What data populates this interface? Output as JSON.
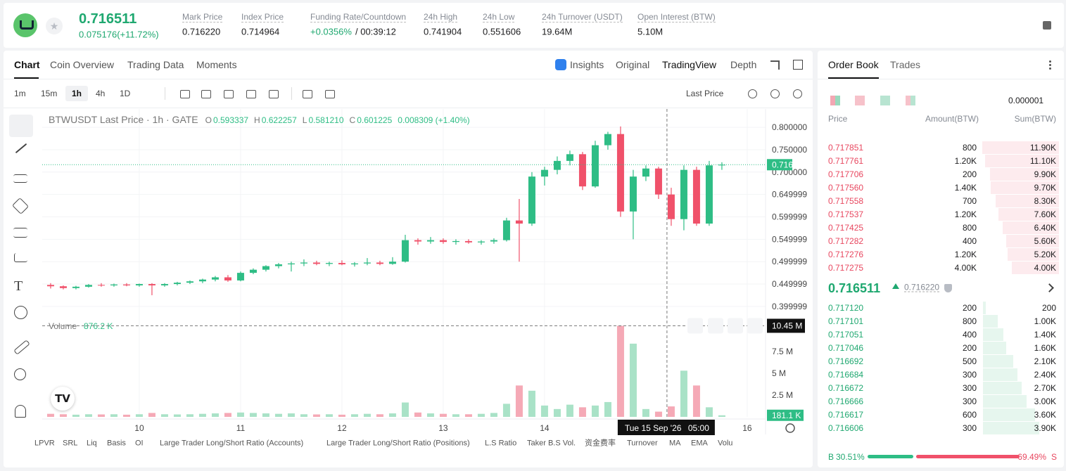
{
  "header": {
    "price": "0.716511",
    "change": "0.075176(+11.72%)",
    "stats": [
      {
        "label": "Mark Price",
        "value": "0.716220"
      },
      {
        "label": "Index Price",
        "value": "0.714964"
      },
      {
        "label": "Funding Rate/Countdown",
        "value": "+0.0356%",
        "value2": "/ 00:39:12"
      },
      {
        "label": "24h High",
        "value": "0.741904"
      },
      {
        "label": "24h Low",
        "value": "0.551606"
      },
      {
        "label": "24h Turnover (USDT)",
        "value": "19.64M"
      },
      {
        "label": "Open Interest (BTW)",
        "value": "5.10M"
      }
    ]
  },
  "chart_tabs": [
    "Chart",
    "Coin Overview",
    "Trading Data",
    "Moments"
  ],
  "view_tabs": [
    "Insights",
    "Original",
    "TradingView",
    "Depth"
  ],
  "timeframes": [
    "1m",
    "15m",
    "1h",
    "4h",
    "1D"
  ],
  "price_source": "Last Price",
  "indicators": [
    "LPVR",
    "SRL",
    "Liq",
    "Basis",
    "OI",
    "Large Trader Long/Short Ratio (Accounts)",
    "Large Trader Long/Short Ratio (Positions)",
    "L.S Ratio",
    "Taker B.S Vol.",
    "资金费率",
    "Turnover",
    "MA",
    "EMA",
    "Volu"
  ],
  "chart_data": {
    "type": "candlestick",
    "symbol": "BTWUSDT Last Price · 1h · GATE",
    "ohlc_legend": [
      [
        "O",
        "0.593337"
      ],
      [
        "H",
        "0.622257"
      ],
      [
        "L",
        "0.581210"
      ],
      [
        "C",
        "0.601225"
      ]
    ],
    "change": "0.008309 (+1.40%)",
    "x": [
      9.125,
      9.25,
      9.375,
      9.5,
      9.625,
      9.75,
      9.875,
      10,
      10.125,
      10.25,
      10.375,
      10.5,
      10.625,
      10.75,
      10.875,
      11,
      11.125,
      11.25,
      11.375,
      11.5,
      11.625,
      11.75,
      11.875,
      12,
      12.125,
      12.25,
      12.375,
      12.5,
      12.625,
      12.75,
      12.875,
      13,
      13.125,
      13.25,
      13.375,
      13.5,
      13.625,
      13.75,
      13.875,
      14,
      14.125,
      14.25,
      14.375,
      14.5,
      14.625,
      14.75,
      14.875,
      15,
      15.125,
      15.25,
      15.375,
      15.5,
      15.625,
      15.75
    ],
    "open": [
      0.448,
      0.445,
      0.441,
      0.444,
      0.448,
      0.447,
      0.449,
      0.447,
      0.45,
      0.447,
      0.45,
      0.453,
      0.456,
      0.46,
      0.465,
      0.458,
      0.475,
      0.482,
      0.49,
      0.494,
      0.496,
      0.498,
      0.495,
      0.497,
      0.494,
      0.496,
      0.498,
      0.495,
      0.5,
      0.548,
      0.545,
      0.548,
      0.544,
      0.546,
      0.543,
      0.545,
      0.548,
      0.592,
      0.585,
      0.69,
      0.705,
      0.725,
      0.74,
      0.668,
      0.76,
      0.785,
      0.612,
      0.69,
      0.708,
      0.65,
      0.595,
      0.705,
      0.585,
      0.715
    ],
    "high": [
      0.452,
      0.447,
      0.446,
      0.45,
      0.452,
      0.451,
      0.452,
      0.451,
      0.452,
      0.452,
      0.455,
      0.458,
      0.462,
      0.468,
      0.47,
      0.478,
      0.485,
      0.492,
      0.497,
      0.5,
      0.505,
      0.502,
      0.5,
      0.503,
      0.499,
      0.508,
      0.502,
      0.51,
      0.56,
      0.552,
      0.555,
      0.552,
      0.55,
      0.55,
      0.548,
      0.552,
      0.598,
      0.64,
      0.7,
      0.712,
      0.735,
      0.748,
      0.745,
      0.77,
      0.79,
      0.802,
      0.705,
      0.715,
      0.712,
      0.665,
      0.715,
      0.712,
      0.725,
      0.722
    ],
    "low": [
      0.44,
      0.438,
      0.438,
      0.442,
      0.444,
      0.444,
      0.445,
      0.444,
      0.425,
      0.444,
      0.447,
      0.45,
      0.452,
      0.456,
      0.455,
      0.456,
      0.472,
      0.478,
      0.485,
      0.478,
      0.49,
      0.492,
      0.49,
      0.492,
      0.489,
      0.492,
      0.492,
      0.493,
      0.498,
      0.538,
      0.54,
      0.54,
      0.538,
      0.54,
      0.538,
      0.54,
      0.545,
      0.5,
      0.58,
      0.67,
      0.695,
      0.715,
      0.66,
      0.665,
      0.75,
      0.6,
      0.55,
      0.68,
      0.64,
      0.58,
      0.57,
      0.58,
      0.58,
      0.705
    ],
    "close": [
      0.445,
      0.441,
      0.444,
      0.448,
      0.447,
      0.449,
      0.447,
      0.45,
      0.447,
      0.45,
      0.453,
      0.456,
      0.46,
      0.465,
      0.458,
      0.475,
      0.482,
      0.49,
      0.494,
      0.496,
      0.498,
      0.495,
      0.497,
      0.494,
      0.496,
      0.498,
      0.495,
      0.5,
      0.548,
      0.545,
      0.548,
      0.544,
      0.546,
      0.543,
      0.545,
      0.548,
      0.592,
      0.585,
      0.69,
      0.705,
      0.725,
      0.74,
      0.668,
      0.76,
      0.785,
      0.612,
      0.69,
      0.708,
      0.65,
      0.595,
      0.705,
      0.585,
      0.715,
      0.716511
    ],
    "volume": [
      0.35,
      0.3,
      0.25,
      0.3,
      0.28,
      0.3,
      0.25,
      0.3,
      0.45,
      0.3,
      0.28,
      0.3,
      0.35,
      0.4,
      0.45,
      0.5,
      0.45,
      0.4,
      0.35,
      0.4,
      0.3,
      0.28,
      0.3,
      0.25,
      0.3,
      0.35,
      0.3,
      0.4,
      1.65,
      0.5,
      0.4,
      0.35,
      0.3,
      0.3,
      0.35,
      0.45,
      1.5,
      3.6,
      3.0,
      1.3,
      0.9,
      1.4,
      1.1,
      1.3,
      1.7,
      10.45,
      8.4,
      0.9,
      0.6,
      1.2,
      5.3,
      3.6,
      1.1,
      0.1811
    ],
    "last_volume_label": "181.1 K",
    "xlim": [
      9.042,
      16.181
    ],
    "xticks": [
      10,
      11,
      12,
      13,
      14,
      16
    ],
    "ylim": [
      0.37,
      0.841
    ],
    "yticks": [
      {
        "value": 0.8,
        "label": "0.800000"
      },
      {
        "value": 0.75,
        "label": "0.750000"
      },
      {
        "value": 0.7,
        "label": "0.700000"
      },
      {
        "value": 0.649999,
        "label": "0.649999"
      },
      {
        "value": 0.599999,
        "label": "0.599999"
      },
      {
        "value": 0.549999,
        "label": "0.549999"
      },
      {
        "value": 0.499999,
        "label": "0.499999"
      },
      {
        "value": 0.449999,
        "label": "0.449999"
      },
      {
        "value": 0.399999,
        "label": "0.399999"
      }
    ],
    "volume_title": "Volume",
    "volume_value": "876.2 K",
    "vlim": [
      0,
      11.13
    ],
    "vticks": [
      {
        "value": 2.5,
        "label": "2.5 M"
      },
      {
        "value": 5,
        "label": "5 M"
      },
      {
        "value": 7.5,
        "label": "7.5 M"
      }
    ],
    "last_price": 0.716511,
    "crosshair": {
      "x": 15.208,
      "volume": 10.45,
      "volume_label": "10.45 M",
      "date_label": "Tue 15 Sep '26",
      "time_label": "05:00"
    },
    "grid": true,
    "colors": {
      "up": "#2ebd85",
      "down": "#f0516a",
      "up_volume": "#a9e2c7",
      "down_volume": "#f5a9b6"
    }
  },
  "orderbook": {
    "tabs": [
      "Order Book",
      "Trades"
    ],
    "precision": "0.000001",
    "headers": [
      "Price",
      "Amount(BTW)",
      "Sum(BTW)"
    ],
    "asks": [
      [
        "0.717851",
        "800",
        11900,
        "11.90K"
      ],
      [
        "0.717761",
        "1.20K",
        11100,
        "11.10K"
      ],
      [
        "0.717706",
        "200",
        9900,
        "9.90K"
      ],
      [
        "0.717560",
        "1.40K",
        9700,
        "9.70K"
      ],
      [
        "0.717558",
        "700",
        8300,
        "8.30K"
      ],
      [
        "0.717537",
        "1.20K",
        7600,
        "7.60K"
      ],
      [
        "0.717425",
        "800",
        6400,
        "6.40K"
      ],
      [
        "0.717282",
        "400",
        5600,
        "5.60K"
      ],
      [
        "0.717276",
        "1.20K",
        5200,
        "5.20K"
      ],
      [
        "0.717275",
        "4.00K",
        4000,
        "4.00K"
      ]
    ],
    "mid_price": "0.716511",
    "mark_price": "0.716220",
    "bids": [
      [
        "0.717120",
        "200",
        200,
        "200"
      ],
      [
        "0.717101",
        "800",
        1000,
        "1.00K"
      ],
      [
        "0.717051",
        "400",
        1400,
        "1.40K"
      ],
      [
        "0.717046",
        "200",
        1600,
        "1.60K"
      ],
      [
        "0.716692",
        "500",
        2100,
        "2.10K"
      ],
      [
        "0.716684",
        "300",
        2400,
        "2.40K"
      ],
      [
        "0.716672",
        "300",
        2700,
        "2.70K"
      ],
      [
        "0.716666",
        "300",
        3000,
        "3.00K"
      ],
      [
        "0.716617",
        "600",
        3600,
        "3.60K"
      ],
      [
        "0.716606",
        "300",
        3900,
        "3.90K"
      ]
    ],
    "buy_key": "B",
    "buy": 30.51,
    "buy_label": "30.51%",
    "sell": 69.49,
    "sell_label": "69.49%",
    "sell_key": "S"
  }
}
